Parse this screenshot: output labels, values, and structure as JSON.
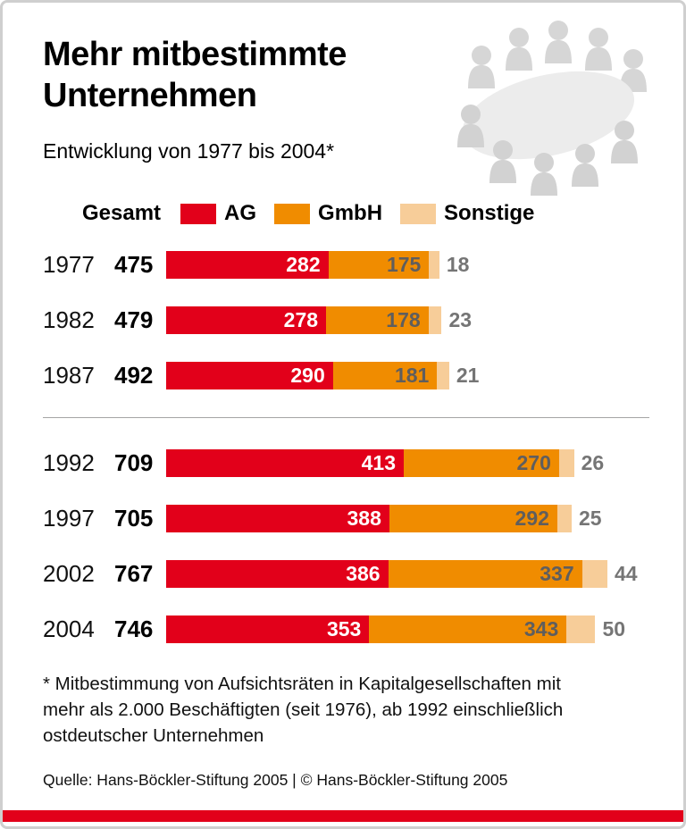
{
  "title": {
    "line1": "Mehr mitbestimmte",
    "line2": "Unternehmen"
  },
  "subtitle": "Entwicklung von 1977 bis 2004*",
  "legend": {
    "gesamt_label": "Gesamt",
    "items": [
      {
        "label": "AG",
        "color": "#e2001a"
      },
      {
        "label": "GmbH",
        "color": "#f08c00"
      },
      {
        "label": "Sonstige",
        "color": "#f7cd99"
      }
    ]
  },
  "chart_data": {
    "type": "bar",
    "orientation": "horizontal",
    "stacked": true,
    "title": "Mehr mitbestimmte Unternehmen",
    "subtitle": "Entwicklung von 1977 bis 2004*",
    "categories": [
      "1977",
      "1982",
      "1987",
      "1992",
      "1997",
      "2002",
      "2004"
    ],
    "totals": [
      475,
      479,
      492,
      709,
      705,
      767,
      746
    ],
    "series": [
      {
        "name": "AG",
        "color": "#e2001a",
        "values": [
          282,
          278,
          290,
          413,
          388,
          386,
          353
        ]
      },
      {
        "name": "GmbH",
        "color": "#f08c00",
        "values": [
          175,
          178,
          181,
          270,
          292,
          337,
          343
        ]
      },
      {
        "name": "Sonstige",
        "color": "#f7cd99",
        "values": [
          18,
          23,
          21,
          26,
          25,
          44,
          50
        ]
      }
    ],
    "legend_position": "top",
    "grid": false,
    "xmax_for_scale": 840,
    "divider_after_index": 2
  },
  "footnote": "* Mitbestimmung von Aufsichtsräten in Kapitalgesellschaften mit mehr als 2.000 Beschäftigten (seit 1976), ab 1992 einschließlich ostdeutscher Unternehmen",
  "source": "Quelle: Hans-Böckler-Stiftung 2005 | © Hans-Böckler-Stiftung 2005",
  "illustration_name": "people-around-conference-table"
}
